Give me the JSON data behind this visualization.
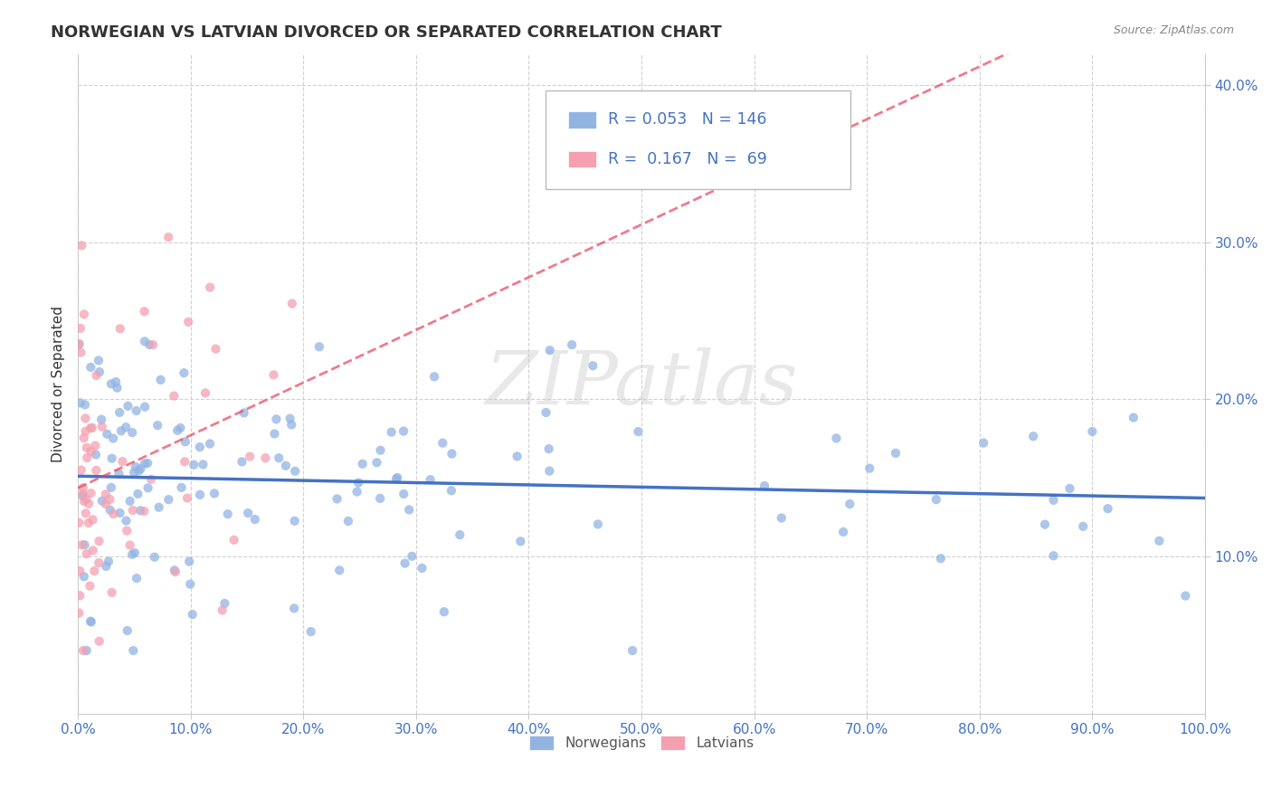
{
  "title": "NORWEGIAN VS LATVIAN DIVORCED OR SEPARATED CORRELATION CHART",
  "source": "Source: ZipAtlas.com",
  "ylabel": "Divorced or Separated",
  "watermark": "ZIPatlas",
  "legend_norwegian": "Norwegians",
  "legend_latvian": "Latvians",
  "R_norwegian": 0.053,
  "N_norwegian": 146,
  "R_latvian": 0.167,
  "N_latvian": 69,
  "norwegian_color": "#92b4e3",
  "latvian_color": "#f4a0b0",
  "norwegian_line_color": "#4472c4",
  "latvian_line_color": "#e8435a",
  "xlim": [
    0.0,
    1.0
  ],
  "ylim": [
    0.0,
    0.42
  ],
  "background_color": "#ffffff",
  "grid_color": "#cccccc",
  "title_color": "#333333",
  "source_color": "#888888",
  "tick_color": "#4472c4",
  "ylabel_color": "#333333"
}
